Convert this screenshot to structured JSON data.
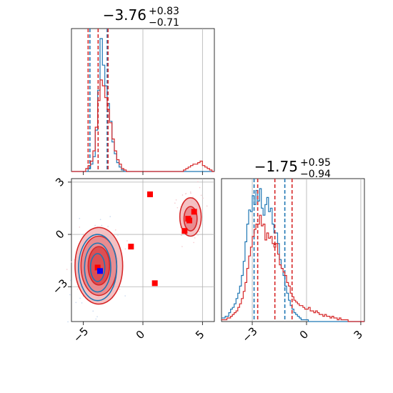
{
  "chart_data": {
    "type": "corner",
    "panels": [
      {
        "id": "hist-param-1",
        "type": "histogram",
        "title": {
          "main": "−3.76",
          "sup": "+0.83",
          "sub": "−0.71"
        },
        "xlim": [
          -6,
          6
        ],
        "grid_x": [
          0,
          5
        ],
        "series": [
          {
            "color": "#1f77b4",
            "bin_start": -6.0,
            "bin_width": 0.2,
            "heights": [
              0,
              0,
              0,
              0,
              0,
              0,
              0,
              0.02,
              0.05,
              0.1,
              0.28,
              0.55,
              0.9,
              0.72,
              0.58,
              0.46,
              0.34,
              0.2,
              0.12,
              0.06,
              0.03,
              0.01,
              0,
              0,
              0,
              0,
              0,
              0,
              0,
              0,
              0,
              0,
              0,
              0,
              0,
              0,
              0,
              0,
              0,
              0,
              0,
              0,
              0,
              0,
              0,
              0,
              0,
              0,
              0,
              0,
              0,
              0,
              0,
              0,
              0,
              0,
              0,
              0,
              0,
              0
            ],
            "quantiles": [
              -4.45,
              -3.0
            ]
          },
          {
            "color": "#d62728",
            "bin_start": -6.0,
            "bin_width": 0.2,
            "heights": [
              0,
              0,
              0,
              0,
              0,
              0,
              0.02,
              0.04,
              0.07,
              0.14,
              0.3,
              0.48,
              0.62,
              0.58,
              0.5,
              0.42,
              0.33,
              0.22,
              0.14,
              0.08,
              0.05,
              0.02,
              0.01,
              0,
              0,
              0,
              0,
              0,
              0,
              0,
              0,
              0,
              0,
              0,
              0,
              0,
              0,
              0,
              0,
              0,
              0,
              0,
              0,
              0,
              0,
              0,
              0,
              0.01,
              0.02,
              0.03,
              0.04,
              0.05,
              0.05,
              0.06,
              0.07,
              0.04,
              0.03,
              0.02,
              0.01,
              0
            ],
            "quantiles": [
              -4.6,
              -3.76,
              -2.93
            ]
          }
        ]
      },
      {
        "id": "hist-param-2",
        "type": "histogram",
        "title": {
          "main": "−1.75",
          "sup": "+0.95",
          "sub": "−0.94"
        },
        "xlim": [
          -4.7,
          3.2
        ],
        "xticks": [
          -3,
          0,
          3
        ],
        "xtick_labels": [
          "−3",
          "0",
          "3"
        ],
        "grid_x": [
          -3,
          0,
          3
        ],
        "series": [
          {
            "color": "#1f77b4",
            "bin_start": -4.7,
            "bin_width": 0.1,
            "heights": [
              0.02,
              0.02,
              0.03,
              0.03,
              0.05,
              0.07,
              0.08,
              0.1,
              0.13,
              0.16,
              0.2,
              0.26,
              0.34,
              0.45,
              0.55,
              0.63,
              0.62,
              0.71,
              0.66,
              0.74,
              0.68,
              0.75,
              0.64,
              0.6,
              0.66,
              0.7,
              0.62,
              0.64,
              0.55,
              0.5,
              0.5,
              0.44,
              0.35,
              0.3,
              0.26,
              0.2,
              0.16,
              0.12,
              0.09,
              0.07,
              0.05,
              0.04,
              0.03,
              0.02,
              0.01,
              0.01,
              0.01,
              0.01,
              0,
              0,
              0,
              0,
              0,
              0,
              0,
              0,
              0,
              0,
              0,
              0,
              0,
              0,
              0,
              0,
              0,
              0,
              0,
              0,
              0,
              0,
              0,
              0,
              0,
              0,
              0,
              0,
              0,
              0,
              0
            ],
            "quantiles": [
              -2.9,
              -1.2
            ]
          },
          {
            "color": "#d62728",
            "bin_start": -4.7,
            "bin_width": 0.1,
            "heights": [
              0.01,
              0.01,
              0.01,
              0.02,
              0.02,
              0.03,
              0.04,
              0.05,
              0.06,
              0.08,
              0.1,
              0.13,
              0.17,
              0.22,
              0.3,
              0.37,
              0.42,
              0.48,
              0.52,
              0.55,
              0.55,
              0.6,
              0.54,
              0.55,
              0.46,
              0.5,
              0.47,
              0.48,
              0.44,
              0.42,
              0.44,
              0.38,
              0.32,
              0.3,
              0.28,
              0.26,
              0.22,
              0.2,
              0.16,
              0.14,
              0.12,
              0.11,
              0.1,
              0.09,
              0.09,
              0.08,
              0.07,
              0.07,
              0.08,
              0.06,
              0.06,
              0.05,
              0.06,
              0.05,
              0.04,
              0.04,
              0.03,
              0.04,
              0.03,
              0.03,
              0.02,
              0.03,
              0.02,
              0.02,
              0.01,
              0.02,
              0.01,
              0.01,
              0.01,
              0.01,
              0,
              0,
              0,
              0,
              0,
              0,
              0,
              0,
              0
            ],
            "quantiles": [
              -2.7,
              -1.75,
              -0.8
            ]
          }
        ]
      },
      {
        "id": "scatter-2d",
        "type": "contour-scatter",
        "xlim": [
          -6,
          6
        ],
        "ylim": [
          -5,
          3.2
        ],
        "xticks": [
          -5,
          0,
          5
        ],
        "xtick_labels": [
          "−5",
          "0",
          "5"
        ],
        "yticks": [
          -3,
          0,
          3
        ],
        "ytick_labels": [
          "−3",
          "0",
          "3"
        ],
        "grid_x": [
          0,
          5
        ],
        "grid_y": [
          -3,
          0,
          3
        ],
        "red_points": [
          [
            0.6,
            2.3
          ],
          [
            -1.0,
            -0.7
          ],
          [
            1.0,
            -2.8
          ],
          [
            -3.8,
            -1.9
          ],
          [
            3.5,
            0.2
          ],
          [
            3.8,
            0.9
          ],
          [
            4.3,
            1.3
          ],
          [
            3.9,
            0.8
          ]
        ],
        "blue_points": [
          [
            -3.6,
            -2.1
          ]
        ],
        "red_contours": [
          {
            "center": [
              -3.7,
              -1.8
            ],
            "rx": 2.0,
            "ry": 2.2,
            "level": 1
          },
          {
            "center": [
              -3.7,
              -1.8
            ],
            "rx": 1.5,
            "ry": 1.7,
            "level": 2
          },
          {
            "center": [
              -3.7,
              -1.8
            ],
            "rx": 0.9,
            "ry": 1.1,
            "level": 3
          },
          {
            "center": [
              4.0,
              1.0
            ],
            "rx": 0.9,
            "ry": 1.1,
            "level": 1
          },
          {
            "center": [
              4.0,
              0.9
            ],
            "rx": 0.55,
            "ry": 0.7,
            "level": 2
          }
        ],
        "blue_contours": [
          {
            "center": [
              -3.8,
              -1.9
            ],
            "rx": 1.6,
            "ry": 1.9
          },
          {
            "center": [
              -3.8,
              -1.9
            ],
            "rx": 1.1,
            "ry": 1.4
          },
          {
            "center": [
              -3.8,
              -1.9
            ],
            "rx": 0.6,
            "ry": 0.8
          }
        ]
      }
    ]
  },
  "colors": {
    "blue": "#1f77b4",
    "red": "#d62728",
    "red_fill": "#f2b6b8",
    "square_red": "#ff0000",
    "square_blue": "#0000ff",
    "grid": "#b0b0b0"
  }
}
